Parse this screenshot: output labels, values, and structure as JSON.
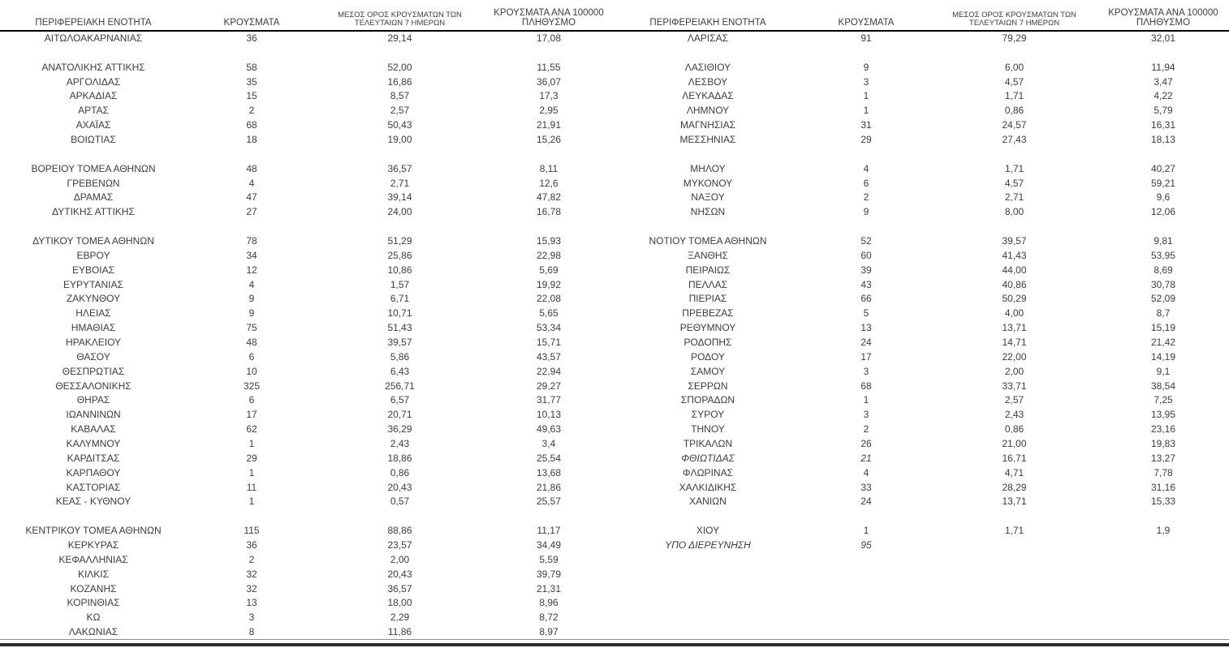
{
  "colors": {
    "text": "#3c3c3c",
    "header_rule": "#000000",
    "bottom_rule_thin": "#8c8c8c",
    "bottom_rule_thick": "#2b2b2b"
  },
  "columns": {
    "region": "ΠΕΡΙΦΕΡΕΙΑΚΗ ΕΝΟΤΗΤΑ",
    "cases": "ΚΡΟΥΣΜΑΤΑ",
    "avg7": "ΜΕΣΟΣ ΟΡΟΣ ΚΡΟΥΣΜΑΤΩΝ ΤΩΝ ΤΕΛΕΥΤΑΙΩΝ 7 ΗΜΕΡΩΝ",
    "per100k": "ΚΡΟΥΣΜΑΤΑ ΑΝΑ 100000 ΠΛΗΘΥΣΜΟ"
  },
  "left_table": {
    "rows": [
      {
        "region": "ΑΙΤΩΛΟΑΚΑΡΝΑΝΙΑΣ",
        "cases": "36",
        "avg7": "29,14",
        "per100k": "17,08"
      },
      null,
      {
        "region": "ΑΝΑΤΟΛΙΚΗΣ ΑΤΤΙΚΗΣ",
        "cases": "58",
        "avg7": "52,00",
        "per100k": "11,55"
      },
      {
        "region": "ΑΡΓΟΛΙΔΑΣ",
        "cases": "35",
        "avg7": "16,86",
        "per100k": "36,07"
      },
      {
        "region": "ΑΡΚΑΔΙΑΣ",
        "cases": "15",
        "avg7": "8,57",
        "per100k": "17,3"
      },
      {
        "region": "ΑΡΤΑΣ",
        "cases": "2",
        "avg7": "2,57",
        "per100k": "2,95"
      },
      {
        "region": "ΑΧΑΪΑΣ",
        "cases": "68",
        "avg7": "50,43",
        "per100k": "21,91"
      },
      {
        "region": "ΒΟΙΩΤΙΑΣ",
        "cases": "18",
        "avg7": "19,00",
        "per100k": "15,26"
      },
      null,
      {
        "region": "ΒΟΡΕΙΟΥ ΤΟΜΕΑ ΑΘΗΝΩΝ",
        "cases": "48",
        "avg7": "36,57",
        "per100k": "8,11"
      },
      {
        "region": "ΓΡΕΒΕΝΩΝ",
        "cases": "4",
        "avg7": "2,71",
        "per100k": "12,6"
      },
      {
        "region": "ΔΡΑΜΑΣ",
        "cases": "47",
        "avg7": "39,14",
        "per100k": "47,82"
      },
      {
        "region": "ΔΥΤΙΚΗΣ ΑΤΤΙΚΗΣ",
        "cases": "27",
        "avg7": "24,00",
        "per100k": "16,78"
      },
      null,
      {
        "region": "ΔΥΤΙΚΟΥ ΤΟΜΕΑ ΑΘΗΝΩΝ",
        "cases": "78",
        "avg7": "51,29",
        "per100k": "15,93"
      },
      {
        "region": "ΕΒΡΟΥ",
        "cases": "34",
        "avg7": "25,86",
        "per100k": "22,98"
      },
      {
        "region": "ΕΥΒΟΙΑΣ",
        "cases": "12",
        "avg7": "10,86",
        "per100k": "5,69"
      },
      {
        "region": "ΕΥΡΥΤΑΝΙΑΣ",
        "cases": "4",
        "avg7": "1,57",
        "per100k": "19,92"
      },
      {
        "region": "ΖΑΚΥΝΘΟΥ",
        "cases": "9",
        "avg7": "6,71",
        "per100k": "22,08"
      },
      {
        "region": "ΗΛΕΙΑΣ",
        "cases": "9",
        "avg7": "10,71",
        "per100k": "5,65"
      },
      {
        "region": "ΗΜΑΘΙΑΣ",
        "cases": "75",
        "avg7": "51,43",
        "per100k": "53,34"
      },
      {
        "region": "ΗΡΑΚΛΕΙΟΥ",
        "cases": "48",
        "avg7": "39,57",
        "per100k": "15,71"
      },
      {
        "region": "ΘΑΣΟΥ",
        "cases": "6",
        "avg7": "5,86",
        "per100k": "43,57"
      },
      {
        "region": "ΘΕΣΠΡΩΤΙΑΣ",
        "cases": "10",
        "avg7": "6,43",
        "per100k": "22,94"
      },
      {
        "region": "ΘΕΣΣΑΛΟΝΙΚΗΣ",
        "cases": "325",
        "avg7": "256,71",
        "per100k": "29,27"
      },
      {
        "region": "ΘΗΡΑΣ",
        "cases": "6",
        "avg7": "6,57",
        "per100k": "31,77"
      },
      {
        "region": "ΙΩΑΝΝΙΝΩΝ",
        "cases": "17",
        "avg7": "20,71",
        "per100k": "10,13"
      },
      {
        "region": "ΚΑΒΑΛΑΣ",
        "cases": "62",
        "avg7": "36,29",
        "per100k": "49,63"
      },
      {
        "region": "ΚΑΛΥΜΝΟΥ",
        "cases": "1",
        "avg7": "2,43",
        "per100k": "3,4"
      },
      {
        "region": "ΚΑΡΔΙΤΣΑΣ",
        "cases": "29",
        "avg7": "18,86",
        "per100k": "25,54"
      },
      {
        "region": "ΚΑΡΠΑΘΟΥ",
        "cases": "1",
        "avg7": "0,86",
        "per100k": "13,68"
      },
      {
        "region": "ΚΑΣΤΟΡΙΑΣ",
        "cases": "11",
        "avg7": "20,43",
        "per100k": "21,86"
      },
      {
        "region": "ΚΕΑΣ - ΚΥΘΝΟΥ",
        "cases": "1",
        "avg7": "0,57",
        "per100k": "25,57"
      },
      null,
      {
        "region": "ΚΕΝΤΡΙΚΟΥ ΤΟΜΕΑ ΑΘΗΝΩΝ",
        "cases": "115",
        "avg7": "88,86",
        "per100k": "11,17"
      },
      {
        "region": "ΚΕΡΚΥΡΑΣ",
        "cases": "36",
        "avg7": "23,57",
        "per100k": "34,49"
      },
      {
        "region": "ΚΕΦΑΛΛΗΝΙΑΣ",
        "cases": "2",
        "avg7": "2,00",
        "per100k": "5,59"
      },
      {
        "region": "ΚΙΛΚΙΣ",
        "cases": "32",
        "avg7": "20,43",
        "per100k": "39,79"
      },
      {
        "region": "ΚΟΖΑΝΗΣ",
        "cases": "32",
        "avg7": "36,57",
        "per100k": "21,31"
      },
      {
        "region": "ΚΟΡΙΝΘΙΑΣ",
        "cases": "13",
        "avg7": "18,00",
        "per100k": "8,96"
      },
      {
        "region": "ΚΩ",
        "cases": "3",
        "avg7": "2,29",
        "per100k": "8,72"
      },
      {
        "region": "ΛΑΚΩΝΙΑΣ",
        "cases": "8",
        "avg7": "11,86",
        "per100k": "8,97"
      }
    ]
  },
  "right_table": {
    "rows": [
      {
        "region": "ΛΑΡΙΣΑΣ",
        "cases": "91",
        "avg7": "79,29",
        "per100k": "32,01"
      },
      null,
      {
        "region": "ΛΑΣΙΘΙΟΥ",
        "cases": "9",
        "avg7": "6,00",
        "per100k": "11,94"
      },
      {
        "region": "ΛΕΣΒΟΥ",
        "cases": "3",
        "avg7": "4,57",
        "per100k": "3,47"
      },
      {
        "region": "ΛΕΥΚΑΔΑΣ",
        "cases": "1",
        "avg7": "1,71",
        "per100k": "4,22"
      },
      {
        "region": "ΛΗΜΝΟΥ",
        "cases": "1",
        "avg7": "0,86",
        "per100k": "5,79"
      },
      {
        "region": "ΜΑΓΝΗΣΙΑΣ",
        "cases": "31",
        "avg7": "24,57",
        "per100k": "16,31"
      },
      {
        "region": "ΜΕΣΣΗΝΙΑΣ",
        "cases": "29",
        "avg7": "27,43",
        "per100k": "18,13"
      },
      null,
      {
        "region": "ΜΗΛΟΥ",
        "cases": "4",
        "avg7": "1,71",
        "per100k": "40,27"
      },
      {
        "region": "ΜΥΚΟΝΟΥ",
        "cases": "6",
        "avg7": "4,57",
        "per100k": "59,21"
      },
      {
        "region": "ΝΑΞΟΥ",
        "cases": "2",
        "avg7": "2,71",
        "per100k": "9,6"
      },
      {
        "region": "ΝΗΣΩΝ",
        "cases": "9",
        "avg7": "8,00",
        "per100k": "12,06"
      },
      null,
      {
        "region": "ΝΟΤΙΟΥ ΤΟΜΕΑ ΑΘΗΝΩΝ",
        "cases": "52",
        "avg7": "39,57",
        "per100k": "9,81"
      },
      {
        "region": "ΞΑΝΘΗΣ",
        "cases": "60",
        "avg7": "41,43",
        "per100k": "53,95"
      },
      {
        "region": "ΠΕΙΡΑΙΩΣ",
        "cases": "39",
        "avg7": "44,00",
        "per100k": "8,69"
      },
      {
        "region": "ΠΕΛΛΑΣ",
        "cases": "43",
        "avg7": "40,86",
        "per100k": "30,78"
      },
      {
        "region": "ΠΙΕΡΙΑΣ",
        "cases": "66",
        "avg7": "50,29",
        "per100k": "52,09"
      },
      {
        "region": "ΠΡΕΒΕΖΑΣ",
        "cases": "5",
        "avg7": "4,00",
        "per100k": "8,7"
      },
      {
        "region": "ΡΕΘΥΜΝΟΥ",
        "cases": "13",
        "avg7": "13,71",
        "per100k": "15,19"
      },
      {
        "region": "ΡΟΔΟΠΗΣ",
        "cases": "24",
        "avg7": "14,71",
        "per100k": "21,42"
      },
      {
        "region": "ΡΟΔΟΥ",
        "cases": "17",
        "avg7": "22,00",
        "per100k": "14,19"
      },
      {
        "region": "ΣΑΜΟΥ",
        "cases": "3",
        "avg7": "2,00",
        "per100k": "9,1"
      },
      {
        "region": "ΣΕΡΡΩΝ",
        "cases": "68",
        "avg7": "33,71",
        "per100k": "38,54"
      },
      {
        "region": "ΣΠΟΡΑΔΩΝ",
        "cases": "1",
        "avg7": "2,57",
        "per100k": "7,25"
      },
      {
        "region": "ΣΥΡΟΥ",
        "cases": "3",
        "avg7": "2,43",
        "per100k": "13,95"
      },
      {
        "region": "ΤΗΝΟΥ",
        "cases": "2",
        "avg7": "0,86",
        "per100k": "23,16"
      },
      {
        "region": "ΤΡΙΚΑΛΩΝ",
        "cases": "26",
        "avg7": "21,00",
        "per100k": "19,83"
      },
      {
        "region": "ΦΘΙΩΤΙΔΑΣ",
        "cases": "21",
        "avg7": "16,71",
        "per100k": "13,27",
        "italic": true
      },
      {
        "region": "ΦΛΩΡΙΝΑΣ",
        "cases": "4",
        "avg7": "4,71",
        "per100k": "7,78"
      },
      {
        "region": "ΧΑΛΚΙΔΙΚΗΣ",
        "cases": "33",
        "avg7": "28,29",
        "per100k": "31,16"
      },
      {
        "region": "ΧΑΝΙΩΝ",
        "cases": "24",
        "avg7": "13,71",
        "per100k": "15,33"
      },
      null,
      {
        "region": "ΧΙΟΥ",
        "cases": "1",
        "avg7": "1,71",
        "per100k": "1,9"
      },
      {
        "region": "ΥΠΟ ΔΙΕΡΕΥΝΗΣΗ",
        "cases": "95",
        "avg7": "",
        "per100k": "",
        "italic": true
      },
      null,
      null,
      null,
      null,
      null,
      null
    ]
  }
}
